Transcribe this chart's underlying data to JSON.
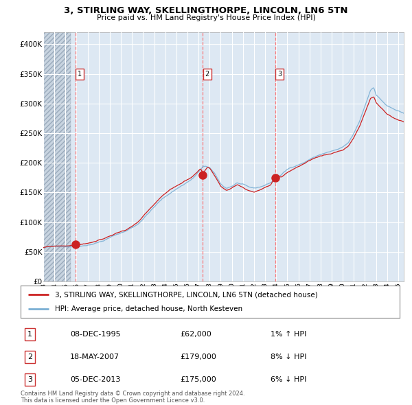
{
  "title": "3, STIRLING WAY, SKELLINGTHORPE, LINCOLN, LN6 5TN",
  "subtitle": "Price paid vs. HM Land Registry's House Price Index (HPI)",
  "hpi_label": "HPI: Average price, detached house, North Kesteven",
  "property_label": "3, STIRLING WAY, SKELLINGTHORPE, LINCOLN, LN6 5TN (detached house)",
  "purchases": [
    {
      "date": "08-DEC-1995",
      "price": 62000,
      "label": "1",
      "pct": "1%",
      "dir": "↑"
    },
    {
      "date": "18-MAY-2007",
      "price": 179000,
      "label": "2",
      "pct": "8%",
      "dir": "↓"
    },
    {
      "date": "05-DEC-2013",
      "price": 175000,
      "label": "3",
      "pct": "6%",
      "dir": "↓"
    }
  ],
  "purchase_years": [
    1995.92,
    2007.38,
    2013.92
  ],
  "purchase_prices": [
    62000,
    179000,
    175000
  ],
  "copyright_text": "Contains HM Land Registry data © Crown copyright and database right 2024.\nThis data is licensed under the Open Government Licence v3.0.",
  "ylim": [
    0,
    420000
  ],
  "xlim_start": 1993.0,
  "xlim_end": 2025.5,
  "hatch_end": 1995.5,
  "vline_color": "#ff6666",
  "hpi_color": "#7aafd4",
  "property_color": "#cc2222",
  "plot_bg": "#dde8f3",
  "grid_color": "#ffffff",
  "hatch_color": "#c8d4e0"
}
